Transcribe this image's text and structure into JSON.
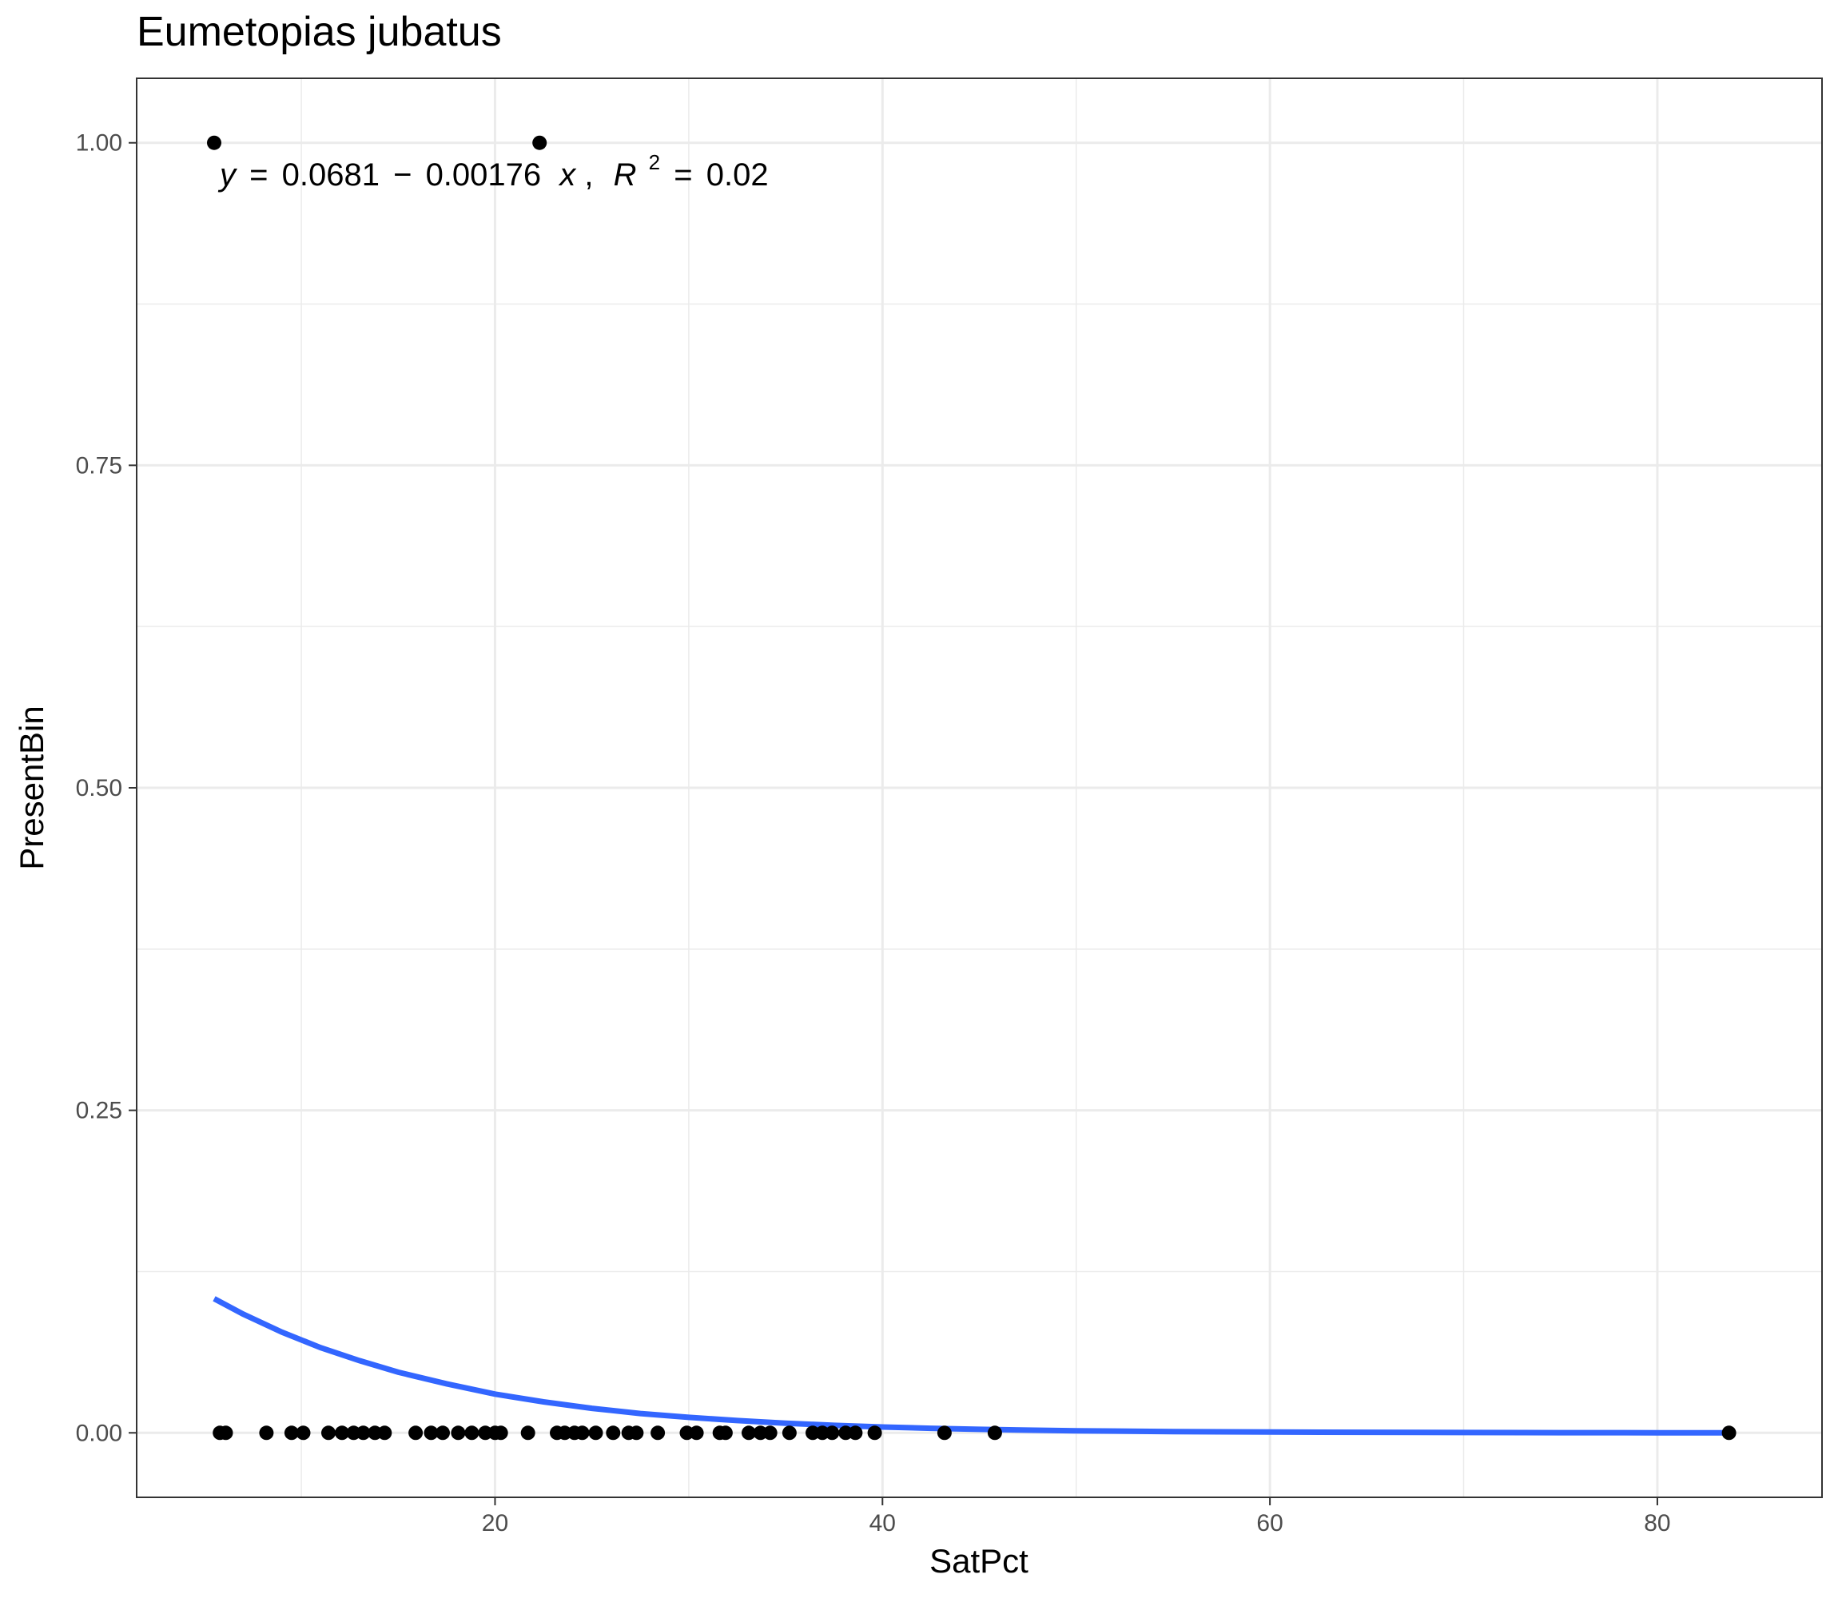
{
  "chart_data": {
    "type": "scatter",
    "title": "Eumetopias jubatus",
    "xlabel": "SatPct",
    "ylabel": "PresentBin",
    "xlim": [
      1.5,
      88.5
    ],
    "ylim": [
      -0.05,
      1.05
    ],
    "x_ticks": [
      20,
      40,
      60,
      80
    ],
    "y_ticks": [
      0.0,
      0.25,
      0.5,
      0.75,
      1.0
    ],
    "x_tick_labels": [
      "20",
      "40",
      "60",
      "80"
    ],
    "y_tick_labels": [
      "0.00",
      "0.25",
      "0.50",
      "0.75",
      "1.00"
    ],
    "grid": true,
    "legend": "none",
    "annotation": {
      "y_var": "y",
      "intercept": "0.0681",
      "sign": "−",
      "slope": "0.00176",
      "x_var": "x",
      "separator": ",",
      "r2_label": "R",
      "r2_exp": "2",
      "r2_value": "0.02",
      "eq": "="
    },
    "points": {
      "name": "",
      "color": "#000000",
      "x": [
        5.5,
        5.8,
        6.1,
        22.3,
        8.2,
        9.5,
        10.1,
        11.4,
        12.1,
        12.7,
        13.2,
        13.8,
        14.3,
        15.9,
        16.7,
        17.3,
        18.1,
        18.8,
        19.5,
        20.0,
        20.3,
        21.7,
        23.2,
        23.6,
        24.1,
        24.5,
        25.2,
        26.1,
        26.9,
        27.3,
        28.4,
        29.9,
        30.4,
        31.6,
        31.9,
        33.1,
        33.7,
        34.2,
        35.2,
        36.4,
        36.9,
        37.4,
        38.1,
        38.6,
        39.6,
        43.2,
        45.8,
        83.7
      ],
      "y": [
        1,
        0,
        0,
        1,
        0,
        0,
        0,
        0,
        0,
        0,
        0,
        0,
        0,
        0,
        0,
        0,
        0,
        0,
        0,
        0,
        0,
        0,
        0,
        0,
        0,
        0,
        0,
        0,
        0,
        0,
        0,
        0,
        0,
        0,
        0,
        0,
        0,
        0,
        0,
        0,
        0,
        0,
        0,
        0,
        0,
        0,
        0,
        0
      ]
    },
    "fit_curve": {
      "type": "logistic",
      "color": "#3366ff",
      "x": [
        5.5,
        7,
        9,
        11,
        13,
        15,
        17.5,
        20,
        22.5,
        25,
        27.5,
        30,
        32.5,
        35,
        37.5,
        40,
        42.5,
        45,
        47.5,
        50,
        55,
        60,
        65,
        70,
        75,
        80,
        83.7
      ],
      "y": [
        0.104,
        0.092,
        0.078,
        0.066,
        0.056,
        0.047,
        0.038,
        0.03,
        0.024,
        0.019,
        0.015,
        0.012,
        0.0095,
        0.0075,
        0.0058,
        0.0045,
        0.0035,
        0.0027,
        0.0021,
        0.0016,
        0.001,
        0.0006,
        0.0004,
        0.0002,
        0.0001,
        5e-05,
        3e-05
      ]
    }
  }
}
